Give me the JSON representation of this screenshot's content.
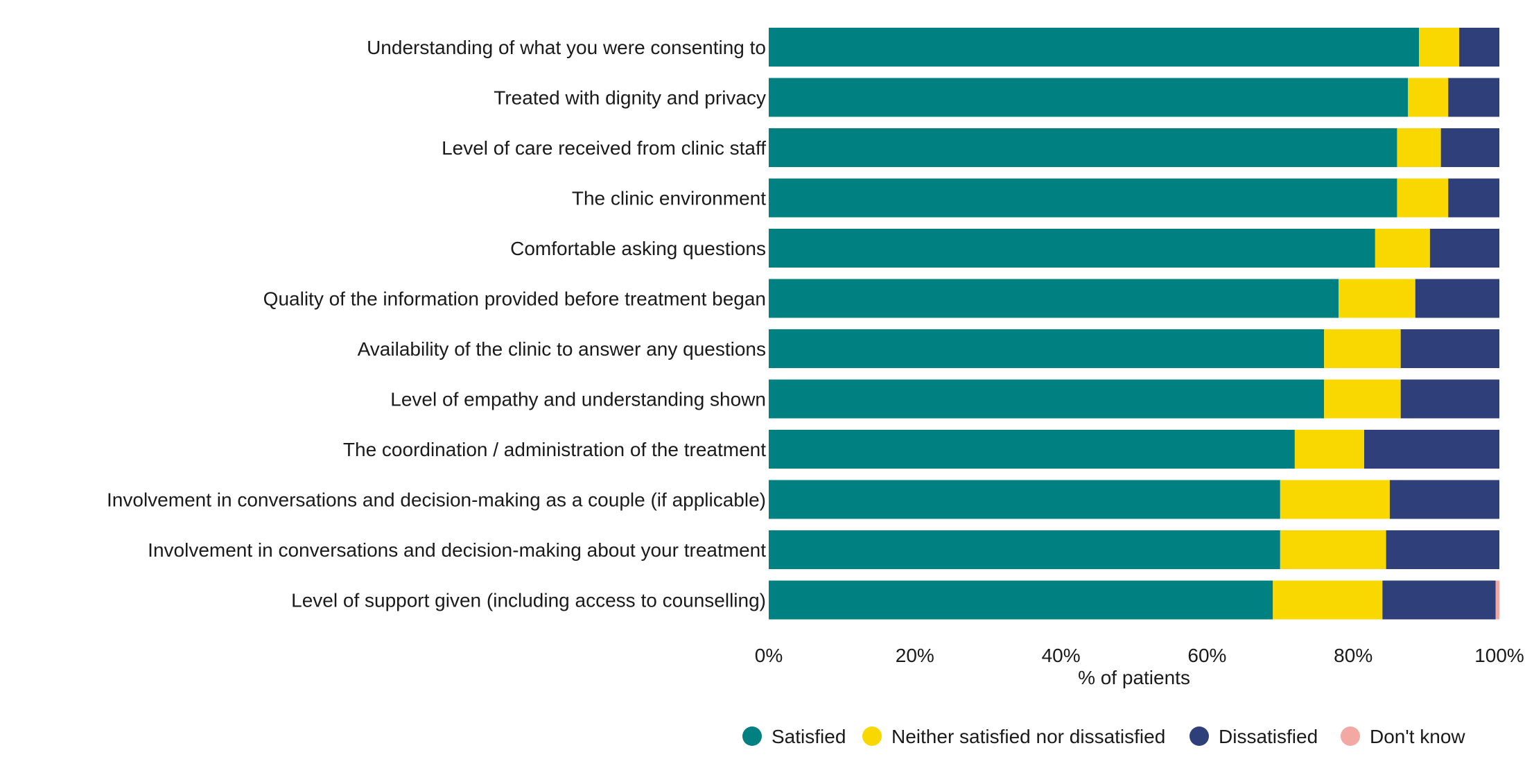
{
  "chart_data": {
    "type": "bar",
    "orientation": "horizontal",
    "stacked": true,
    "categories": [
      "Understanding of what you were consenting to",
      "Treated with dignity and privacy",
      "Level of care received from clinic staff",
      "The clinic environment",
      "Comfortable asking questions",
      "Quality of the information provided before treatment began",
      "Availability of the clinic to answer any questions",
      "Level of empathy and understanding shown",
      "The coordination / administration of the treatment",
      "Involvement in conversations and decision-making as a couple (if applicable)",
      "Involvement in conversations and decision-making about your treatment",
      "Level of support given (including access to counselling)"
    ],
    "series": [
      {
        "name": "Satisfied",
        "color": "#008080",
        "values": [
          89,
          87.5,
          86,
          86,
          83,
          78,
          76,
          76,
          72,
          70,
          70,
          69
        ]
      },
      {
        "name": "Neither satisfied nor dissatisfied",
        "color": "#F8D800",
        "values": [
          5.5,
          5.5,
          6,
          7,
          7.5,
          10.5,
          10.5,
          10.5,
          9.5,
          15,
          14.5,
          15
        ]
      },
      {
        "name": "Dissatisfied",
        "color": "#2E3F7A",
        "values": [
          5.5,
          7,
          8,
          7,
          9.5,
          11.5,
          13.5,
          13.5,
          18.5,
          15,
          15.5,
          15.5
        ]
      },
      {
        "name": "Don't know",
        "color": "#F2A9A3",
        "values": [
          0,
          0,
          0,
          0,
          0,
          0,
          0,
          0,
          0,
          0,
          0,
          0.5
        ]
      }
    ],
    "xlim": [
      0,
      100
    ],
    "xticks": [
      "0%",
      "20%",
      "40%",
      "60%",
      "80%",
      "100%"
    ],
    "xlabel": "% of patients",
    "ylabel": "",
    "legend_position": "bottom-right",
    "grid": false
  }
}
